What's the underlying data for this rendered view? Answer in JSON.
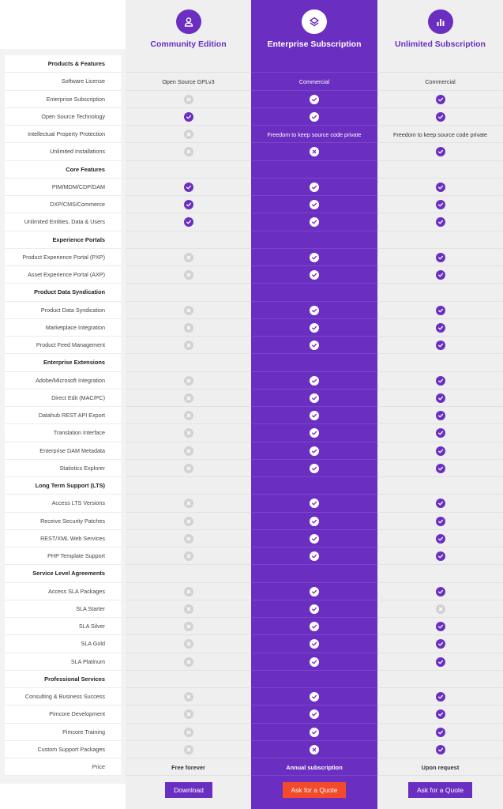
{
  "plans": [
    {
      "title": "Community Edition",
      "icon": "user-icon",
      "button": "Download"
    },
    {
      "title": "Enterprise Subscription",
      "icon": "layers-icon",
      "button": "Ask for a Quote"
    },
    {
      "title": "Unlimited Subscription",
      "icon": "bar-chart-icon",
      "button": "Ask for a Quote"
    }
  ],
  "colors": {
    "accent": "#6a2fc1",
    "quote_button": "#f24a2a",
    "muted": "#d2d2d2"
  },
  "rows": [
    {
      "type": "section",
      "label": "Products & Features"
    },
    {
      "type": "row",
      "label": "Software License",
      "values": [
        "Open Source GPLv3",
        "Commercial",
        "Commercial"
      ]
    },
    {
      "type": "row",
      "label": "Enterprise Subscription",
      "values": [
        "no",
        "yes",
        "yes"
      ]
    },
    {
      "type": "row",
      "label": "Open Source Technology",
      "values": [
        "yes",
        "yes",
        "yes"
      ]
    },
    {
      "type": "row",
      "label": "Intellectual Property Protection",
      "values": [
        "no",
        "Freedom to keep source code private",
        "Freedom to keep source code private"
      ]
    },
    {
      "type": "row",
      "label": "Unlimited Installations",
      "values": [
        "no",
        "no",
        "yes"
      ]
    },
    {
      "type": "section",
      "label": "Core Features"
    },
    {
      "type": "row",
      "label": "PIM/MDM/CDP/DAM",
      "values": [
        "yes",
        "yes",
        "yes"
      ]
    },
    {
      "type": "row",
      "label": "DXP/CMS/Commerce",
      "values": [
        "yes",
        "yes",
        "yes"
      ]
    },
    {
      "type": "row",
      "label": "Unlimited Entities, Data & Users",
      "values": [
        "yes",
        "yes",
        "yes"
      ]
    },
    {
      "type": "section",
      "label": "Experience Portals"
    },
    {
      "type": "row",
      "label": "Product Experience Portal (PXP)",
      "values": [
        "no",
        "yes",
        "yes"
      ]
    },
    {
      "type": "row",
      "label": "Asset Experience Portal (AXP)",
      "values": [
        "no",
        "yes",
        "yes"
      ]
    },
    {
      "type": "section",
      "label": "Product Data Syndication"
    },
    {
      "type": "row",
      "label": "Product Data Syndication",
      "values": [
        "no",
        "yes",
        "yes"
      ]
    },
    {
      "type": "row",
      "label": "Marketplace Integration",
      "values": [
        "no",
        "yes",
        "yes"
      ]
    },
    {
      "type": "row",
      "label": "Product Feed Management",
      "values": [
        "no",
        "yes",
        "yes"
      ]
    },
    {
      "type": "section",
      "label": "Enterprise Extensions"
    },
    {
      "type": "row",
      "label": "Adobe/Microsoft Integration",
      "values": [
        "no",
        "yes",
        "yes"
      ]
    },
    {
      "type": "row",
      "label": "Direct Edit (MAC/PC)",
      "values": [
        "no",
        "yes",
        "yes"
      ]
    },
    {
      "type": "row",
      "label": "Datahub REST API Export",
      "values": [
        "no",
        "yes",
        "yes"
      ]
    },
    {
      "type": "row",
      "label": "Translation Interface",
      "values": [
        "no",
        "yes",
        "yes"
      ]
    },
    {
      "type": "row",
      "label": "Enterprise DAM Metadata",
      "values": [
        "no",
        "yes",
        "yes"
      ]
    },
    {
      "type": "row",
      "label": "Statistics Explorer",
      "values": [
        "no",
        "yes",
        "yes"
      ]
    },
    {
      "type": "section",
      "label": "Long Term Support (LTS)"
    },
    {
      "type": "row",
      "label": "Access LTS Versions",
      "values": [
        "no",
        "yes",
        "yes"
      ]
    },
    {
      "type": "row",
      "label": "Receive Security Patches",
      "values": [
        "no",
        "yes",
        "yes"
      ]
    },
    {
      "type": "row",
      "label": "REST/XML Web Services",
      "values": [
        "no",
        "yes",
        "yes"
      ]
    },
    {
      "type": "row",
      "label": "PHP Template Support",
      "values": [
        "no",
        "yes",
        "yes"
      ]
    },
    {
      "type": "section",
      "label": "Service Level Agreements"
    },
    {
      "type": "row",
      "label": "Access SLA Packages",
      "values": [
        "no",
        "yes",
        "yes"
      ]
    },
    {
      "type": "row",
      "label": "SLA Starter",
      "values": [
        "no",
        "yes",
        "no"
      ]
    },
    {
      "type": "row",
      "label": "SLA Silver",
      "values": [
        "no",
        "yes",
        "yes"
      ]
    },
    {
      "type": "row",
      "label": "SLA Gold",
      "values": [
        "no",
        "yes",
        "yes"
      ]
    },
    {
      "type": "row",
      "label": "SLA Platinum",
      "values": [
        "no",
        "yes",
        "yes"
      ]
    },
    {
      "type": "section",
      "label": "Professional Services"
    },
    {
      "type": "row",
      "label": "Consulting & Business Success",
      "values": [
        "no",
        "yes",
        "yes"
      ]
    },
    {
      "type": "row",
      "label": "Pimcore Development",
      "values": [
        "no",
        "yes",
        "yes"
      ]
    },
    {
      "type": "row",
      "label": "Pimcore Training",
      "values": [
        "no",
        "yes",
        "yes"
      ]
    },
    {
      "type": "row",
      "label": "Custom Support Packages",
      "values": [
        "no",
        "no",
        "yes"
      ]
    },
    {
      "type": "price",
      "label": "Price",
      "values": [
        "Free forever",
        "Annual subscription",
        "Upon request"
      ]
    }
  ]
}
